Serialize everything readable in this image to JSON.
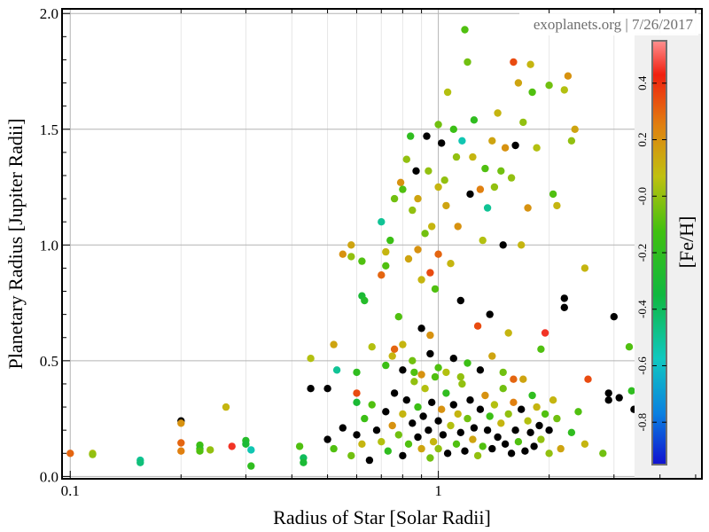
{
  "chart_data": {
    "type": "scatter",
    "xlabel": "Radius of Star [Solar Radii]",
    "ylabel": "Planetary Radius [Jupiter Radii]",
    "x_scale": "log",
    "xlim": [
      0.095,
      5.2
    ],
    "ylim": [
      -0.01,
      2.02
    ],
    "x_ticks": [
      0.1,
      1
    ],
    "x_tick_labels": [
      "0.1",
      "1"
    ],
    "y_ticks": [
      0.0,
      0.5,
      1.0,
      1.5,
      2.0
    ],
    "y_tick_labels": [
      "0.0",
      "0.5",
      "1.0",
      "1.5",
      "2.0"
    ],
    "grid": true,
    "watermark": "exoplanets.org | 7/26/2017",
    "colorbar": {
      "label": "[Fe/H]",
      "range": [
        -0.95,
        0.55
      ],
      "ticks": [
        0.4,
        0.2,
        -0.0,
        -0.2,
        -0.4,
        -0.6,
        -0.8
      ],
      "tick_labels": [
        "0.4",
        "0.2",
        "-0.0",
        "-0.2",
        "-0.4",
        "-0.6",
        "-0.8"
      ],
      "no_data_color": "#000000"
    },
    "points": [
      [
        0.1,
        0.1,
        0.3
      ],
      [
        0.115,
        0.1,
        0.05
      ],
      [
        0.115,
        0.095,
        0.0
      ],
      [
        0.155,
        0.07,
        -0.5
      ],
      [
        0.155,
        0.06,
        -0.45
      ],
      [
        0.2,
        0.24,
        null
      ],
      [
        0.2,
        0.23,
        0.2
      ],
      [
        0.2,
        0.145,
        0.3
      ],
      [
        0.2,
        0.11,
        0.25
      ],
      [
        0.225,
        0.135,
        -0.15
      ],
      [
        0.225,
        0.12,
        -0.2
      ],
      [
        0.225,
        0.11,
        -0.1
      ],
      [
        0.24,
        0.115,
        0.0
      ],
      [
        0.265,
        0.3,
        0.1
      ],
      [
        0.275,
        0.13,
        0.45
      ],
      [
        0.3,
        0.155,
        -0.25
      ],
      [
        0.3,
        0.14,
        -0.3
      ],
      [
        0.31,
        0.115,
        -0.55
      ],
      [
        0.31,
        0.045,
        -0.2
      ],
      [
        0.42,
        0.13,
        -0.1
      ],
      [
        0.43,
        0.08,
        -0.4
      ],
      [
        0.43,
        0.06,
        -0.3
      ],
      [
        0.45,
        0.38,
        null
      ],
      [
        0.45,
        0.51,
        0.05
      ],
      [
        0.5,
        0.38,
        null
      ],
      [
        0.52,
        0.57,
        0.15
      ],
      [
        0.53,
        0.46,
        -0.5
      ],
      [
        0.55,
        0.96,
        0.2
      ],
      [
        0.58,
        1.0,
        0.15
      ],
      [
        0.58,
        0.95,
        0.0
      ],
      [
        0.6,
        0.45,
        -0.2
      ],
      [
        0.6,
        0.36,
        0.35
      ],
      [
        0.6,
        0.32,
        -0.3
      ],
      [
        0.62,
        0.93,
        -0.1
      ],
      [
        0.62,
        0.78,
        -0.3
      ],
      [
        0.63,
        0.76,
        -0.25
      ],
      [
        0.66,
        0.56,
        0.05
      ],
      [
        0.7,
        0.87,
        0.3
      ],
      [
        0.7,
        1.1,
        -0.5
      ],
      [
        0.72,
        0.91,
        -0.1
      ],
      [
        0.72,
        0.97,
        0.1
      ],
      [
        0.74,
        1.02,
        -0.15
      ],
      [
        0.76,
        1.2,
        -0.05
      ],
      [
        0.76,
        0.55,
        0.3
      ],
      [
        0.78,
        0.69,
        -0.1
      ],
      [
        0.79,
        1.27,
        0.2
      ],
      [
        0.8,
        1.24,
        -0.1
      ],
      [
        0.8,
        0.57,
        0.1
      ],
      [
        0.82,
        1.37,
        0.0
      ],
      [
        0.83,
        0.94,
        0.15
      ],
      [
        0.84,
        1.47,
        -0.2
      ],
      [
        0.85,
        1.15,
        0.0
      ],
      [
        0.86,
        0.45,
        -0.1
      ],
      [
        0.87,
        1.32,
        null
      ],
      [
        0.88,
        1.2,
        0.15
      ],
      [
        0.88,
        0.98,
        0.2
      ],
      [
        0.9,
        0.85,
        0.1
      ],
      [
        0.9,
        0.64,
        null
      ],
      [
        0.92,
        1.05,
        -0.05
      ],
      [
        0.93,
        1.47,
        null
      ],
      [
        0.94,
        1.32,
        0.0
      ],
      [
        0.95,
        0.88,
        0.35
      ],
      [
        0.95,
        0.61,
        0.2
      ],
      [
        0.96,
        1.08,
        0.1
      ],
      [
        0.98,
        0.81,
        -0.1
      ],
      [
        1.0,
        1.52,
        -0.05
      ],
      [
        1.0,
        1.25,
        0.1
      ],
      [
        1.0,
        0.96,
        0.3
      ],
      [
        1.02,
        1.44,
        null
      ],
      [
        1.04,
        1.28,
        0.0
      ],
      [
        1.05,
        1.17,
        0.15
      ],
      [
        1.06,
        1.66,
        0.05
      ],
      [
        1.08,
        0.92,
        0.1
      ],
      [
        1.1,
        1.5,
        -0.15
      ],
      [
        1.12,
        1.38,
        0.0
      ],
      [
        1.13,
        1.08,
        0.2
      ],
      [
        1.15,
        0.76,
        null
      ],
      [
        1.16,
        1.45,
        -0.55
      ],
      [
        1.18,
        1.93,
        -0.1
      ],
      [
        1.2,
        1.79,
        -0.05
      ],
      [
        1.22,
        1.22,
        null
      ],
      [
        1.24,
        1.38,
        0.1
      ],
      [
        1.25,
        1.54,
        -0.2
      ],
      [
        1.28,
        0.65,
        0.35
      ],
      [
        1.3,
        1.24,
        0.25
      ],
      [
        1.32,
        1.02,
        0.05
      ],
      [
        1.34,
        1.33,
        -0.1
      ],
      [
        1.36,
        1.16,
        -0.5
      ],
      [
        1.38,
        0.7,
        null
      ],
      [
        1.4,
        1.45,
        0.15
      ],
      [
        1.42,
        1.25,
        0.0
      ],
      [
        1.45,
        1.57,
        0.1
      ],
      [
        1.48,
        1.32,
        -0.05
      ],
      [
        1.5,
        1.0,
        null
      ],
      [
        1.52,
        1.42,
        0.2
      ],
      [
        1.55,
        0.62,
        0.1
      ],
      [
        1.58,
        1.29,
        0.0
      ],
      [
        1.6,
        1.79,
        0.35
      ],
      [
        1.62,
        1.43,
        null
      ],
      [
        1.65,
        1.7,
        0.15
      ],
      [
        1.68,
        1.0,
        0.1
      ],
      [
        1.7,
        1.53,
        0.0
      ],
      [
        1.75,
        1.16,
        0.2
      ],
      [
        1.78,
        1.78,
        0.1
      ],
      [
        1.8,
        1.66,
        -0.1
      ],
      [
        1.85,
        1.42,
        0.05
      ],
      [
        1.9,
        0.55,
        -0.1
      ],
      [
        1.95,
        0.62,
        0.45
      ],
      [
        2.0,
        1.69,
        -0.05
      ],
      [
        2.05,
        1.22,
        -0.1
      ],
      [
        2.1,
        1.17,
        0.1
      ],
      [
        2.2,
        1.67,
        0.05
      ],
      [
        2.25,
        1.73,
        0.2
      ],
      [
        2.3,
        1.45,
        0.0
      ],
      [
        2.35,
        1.5,
        0.15
      ],
      [
        2.2,
        0.77,
        null
      ],
      [
        2.2,
        0.73,
        null
      ],
      [
        2.5,
        0.9,
        0.1
      ],
      [
        2.55,
        0.42,
        0.35
      ],
      [
        2.4,
        0.28,
        -0.1
      ],
      [
        2.9,
        0.36,
        null
      ],
      [
        2.9,
        0.33,
        null
      ],
      [
        3.0,
        0.69,
        null
      ],
      [
        3.1,
        0.34,
        null
      ],
      [
        3.3,
        0.56,
        -0.1
      ],
      [
        3.35,
        0.37,
        -0.2
      ],
      [
        3.4,
        0.29,
        null
      ],
      [
        3.6,
        0.32,
        -0.3
      ],
      [
        3.6,
        0.29,
        null
      ],
      [
        2.8,
        0.1,
        -0.05
      ],
      [
        2.5,
        0.14,
        0.1
      ],
      [
        2.3,
        0.19,
        -0.2
      ],
      [
        2.15,
        0.12,
        0.15
      ],
      [
        2.0,
        0.1,
        0.0
      ],
      [
        0.5,
        0.16,
        null
      ],
      [
        0.52,
        0.12,
        -0.1
      ],
      [
        0.55,
        0.21,
        null
      ],
      [
        0.58,
        0.09,
        -0.05
      ],
      [
        0.6,
        0.18,
        null
      ],
      [
        0.62,
        0.14,
        0.1
      ],
      [
        0.63,
        0.25,
        -0.15
      ],
      [
        0.65,
        0.07,
        null
      ],
      [
        0.66,
        0.31,
        -0.1
      ],
      [
        0.68,
        0.2,
        null
      ],
      [
        0.7,
        0.15,
        0.05
      ],
      [
        0.72,
        0.28,
        null
      ],
      [
        0.73,
        0.11,
        -0.2
      ],
      [
        0.75,
        0.22,
        0.2
      ],
      [
        0.76,
        0.36,
        null
      ],
      [
        0.78,
        0.18,
        -0.05
      ],
      [
        0.8,
        0.09,
        null
      ],
      [
        0.8,
        0.27,
        0.1
      ],
      [
        0.82,
        0.33,
        null
      ],
      [
        0.83,
        0.14,
        -0.1
      ],
      [
        0.85,
        0.23,
        null
      ],
      [
        0.86,
        0.41,
        0.0
      ],
      [
        0.88,
        0.17,
        null
      ],
      [
        0.88,
        0.3,
        -0.15
      ],
      [
        0.9,
        0.12,
        0.15
      ],
      [
        0.91,
        0.26,
        null
      ],
      [
        0.92,
        0.38,
        0.05
      ],
      [
        0.94,
        0.2,
        null
      ],
      [
        0.95,
        0.08,
        -0.05
      ],
      [
        0.96,
        0.32,
        null
      ],
      [
        0.97,
        0.15,
        0.1
      ],
      [
        0.98,
        0.43,
        -0.1
      ],
      [
        1.0,
        0.24,
        null
      ],
      [
        1.0,
        0.12,
        0.0
      ],
      [
        1.02,
        0.29,
        0.2
      ],
      [
        1.03,
        0.18,
        null
      ],
      [
        1.05,
        0.36,
        -0.2
      ],
      [
        1.06,
        0.1,
        null
      ],
      [
        1.08,
        0.22,
        0.05
      ],
      [
        1.1,
        0.31,
        null
      ],
      [
        1.12,
        0.14,
        -0.1
      ],
      [
        1.13,
        0.27,
        0.1
      ],
      [
        1.15,
        0.19,
        null
      ],
      [
        1.16,
        0.4,
        0.0
      ],
      [
        1.18,
        0.11,
        null
      ],
      [
        1.2,
        0.25,
        -0.05
      ],
      [
        1.22,
        0.33,
        null
      ],
      [
        1.24,
        0.16,
        0.15
      ],
      [
        1.25,
        0.21,
        null
      ],
      [
        1.28,
        0.09,
        0.0
      ],
      [
        1.3,
        0.29,
        null
      ],
      [
        1.32,
        0.13,
        -0.1
      ],
      [
        1.34,
        0.35,
        0.2
      ],
      [
        1.36,
        0.2,
        null
      ],
      [
        1.38,
        0.26,
        -0.15
      ],
      [
        1.4,
        0.12,
        null
      ],
      [
        1.42,
        0.31,
        0.05
      ],
      [
        1.45,
        0.17,
        null
      ],
      [
        1.48,
        0.23,
        0.1
      ],
      [
        1.5,
        0.38,
        -0.05
      ],
      [
        1.52,
        0.14,
        null
      ],
      [
        1.55,
        0.27,
        0.0
      ],
      [
        1.58,
        0.1,
        null
      ],
      [
        1.6,
        0.32,
        0.25
      ],
      [
        1.62,
        0.2,
        null
      ],
      [
        1.65,
        0.15,
        -0.1
      ],
      [
        1.68,
        0.29,
        null
      ],
      [
        1.7,
        0.42,
        0.15
      ],
      [
        1.72,
        0.11,
        null
      ],
      [
        1.75,
        0.24,
        0.05
      ],
      [
        1.78,
        0.19,
        null
      ],
      [
        1.8,
        0.35,
        -0.2
      ],
      [
        1.82,
        0.13,
        null
      ],
      [
        1.85,
        0.3,
        0.1
      ],
      [
        1.88,
        0.22,
        null
      ],
      [
        1.9,
        0.16,
        0.0
      ],
      [
        1.95,
        0.27,
        -0.1
      ],
      [
        2.0,
        0.2,
        null
      ],
      [
        2.05,
        0.33,
        0.1
      ],
      [
        2.1,
        0.25,
        -0.05
      ],
      [
        0.72,
        0.48,
        -0.15
      ],
      [
        0.75,
        0.52,
        0.1
      ],
      [
        0.8,
        0.46,
        null
      ],
      [
        0.85,
        0.5,
        -0.05
      ],
      [
        0.9,
        0.44,
        0.2
      ],
      [
        0.95,
        0.53,
        null
      ],
      [
        1.0,
        0.47,
        -0.1
      ],
      [
        1.05,
        0.45,
        0.05
      ],
      [
        1.1,
        0.51,
        null
      ],
      [
        1.15,
        0.43,
        0.0
      ],
      [
        1.2,
        0.49,
        -0.15
      ],
      [
        1.3,
        0.46,
        null
      ],
      [
        1.4,
        0.52,
        0.15
      ],
      [
        1.5,
        0.45,
        -0.05
      ],
      [
        1.6,
        0.42,
        0.3
      ]
    ]
  }
}
